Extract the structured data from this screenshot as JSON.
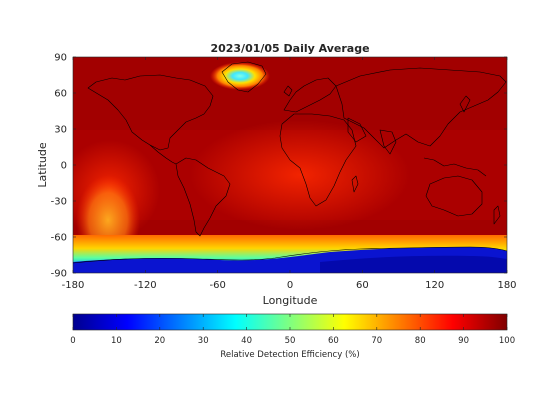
{
  "title": "2023/01/05 Daily Average",
  "map": {
    "xlabel": "Longitude",
    "ylabel": "Latitude",
    "xlim": [
      -180,
      180
    ],
    "ylim": [
      -90,
      90
    ],
    "xticks": [
      -180,
      -120,
      -60,
      0,
      60,
      120,
      180
    ],
    "yticks": [
      90,
      60,
      30,
      0,
      -30,
      -60,
      -90
    ],
    "grid": false,
    "projection": "equirectangular",
    "coastlines": true
  },
  "colorbar": {
    "label": "Relative Detection Efficiency (%)",
    "ticks": [
      0,
      10,
      20,
      30,
      40,
      50,
      60,
      70,
      80,
      90,
      100
    ],
    "range": [
      0,
      100
    ],
    "colormap": "jet",
    "orientation": "horizontal"
  },
  "chart_data": {
    "type": "heatmap",
    "title": "2023/01/05 Daily Average",
    "xlabel": "Longitude",
    "ylabel": "Latitude",
    "xlim": [
      -180,
      180
    ],
    "ylim": [
      -90,
      90
    ],
    "colorbar_label": "Relative Detection Efficiency (%)",
    "colorbar_range": [
      0,
      100
    ],
    "background_value": 96,
    "regions": [
      {
        "name": "Antarctic band",
        "lon": [
          -180,
          180
        ],
        "lat": [
          -90,
          -72
        ],
        "value": 8
      },
      {
        "name": "Antarctic coastal transition",
        "lon": [
          -180,
          180
        ],
        "lat": [
          -72,
          -62
        ],
        "value": 60
      },
      {
        "name": "South Pacific low",
        "lon": [
          -165,
          -140
        ],
        "lat": [
          -60,
          -15
        ],
        "value": 72
      },
      {
        "name": "Greenland peak low",
        "lon": [
          -55,
          -35
        ],
        "lat": [
          65,
          78
        ],
        "value": 45
      },
      {
        "name": "Greenland surroundings",
        "lon": [
          -70,
          -20
        ],
        "lat": [
          60,
          83
        ],
        "value": 80
      },
      {
        "name": "Tropical Atlantic and Africa",
        "lon": [
          -60,
          50
        ],
        "lat": [
          -20,
          20
        ],
        "value": 88
      }
    ]
  },
  "colors": {
    "axis_text": "#262626",
    "axis_line": "#262626",
    "coastline": "#000000",
    "background_field": "#a00000"
  }
}
